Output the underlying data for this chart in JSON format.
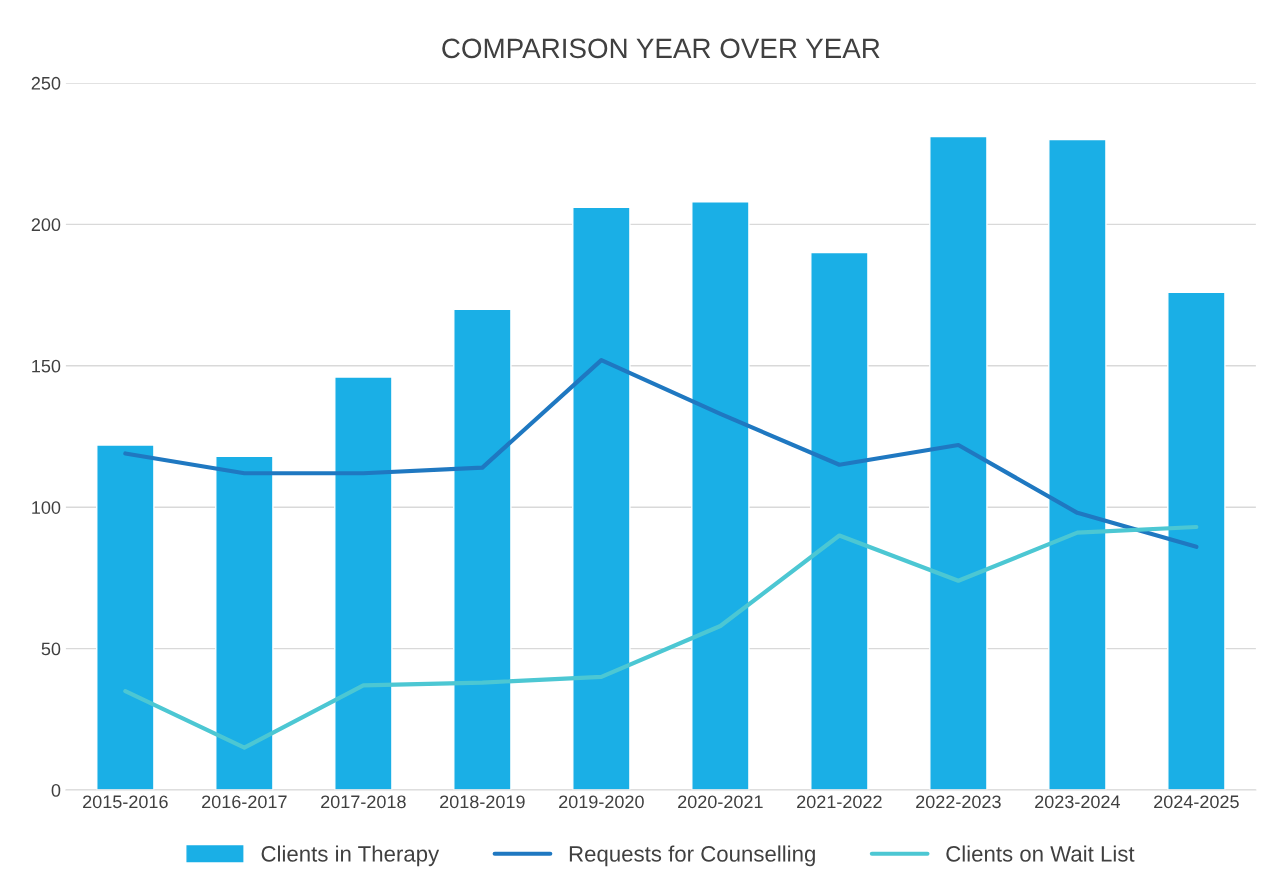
{
  "chart_data": {
    "type": "bar",
    "title": "COMPARISON YEAR OVER YEAR",
    "categories": [
      "2015-2016",
      "2016-2017",
      "2017-2018",
      "2018-2019",
      "2019-2020",
      "2020-2021",
      "2021-2022",
      "2022-2023",
      "2023-2024",
      "2024-2025"
    ],
    "series": [
      {
        "name": "Clients in Therapy",
        "color": "#1aafe6",
        "values": [
          122,
          118,
          146,
          170,
          206,
          208,
          190,
          231,
          230,
          176
        ]
      },
      {
        "name": "Requests for Counselling",
        "type": "line",
        "color": "#1f78c1",
        "values": [
          119,
          112,
          112,
          114,
          152,
          133,
          115,
          122,
          98,
          86
        ]
      },
      {
        "name": "Clients on Wait List",
        "type": "line",
        "color": "#4cc7d3",
        "values": [
          35,
          15,
          37,
          38,
          40,
          58,
          90,
          74,
          91,
          93
        ]
      }
    ],
    "ylim": [
      0,
      250
    ],
    "yticks": [
      0,
      50,
      100,
      150,
      200,
      250
    ],
    "grid": "y",
    "legend": "bottom",
    "marker": "none"
  }
}
